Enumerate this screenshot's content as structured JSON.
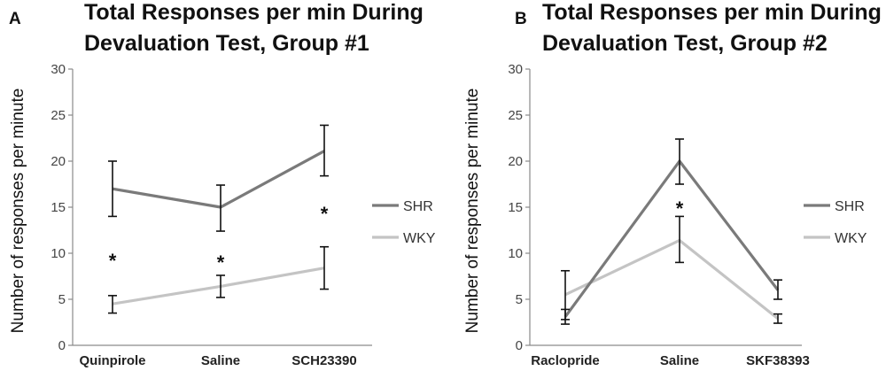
{
  "chart_data": [
    {
      "type": "line",
      "panel_letter": "A",
      "title_lines": [
        "Total Responses per min During",
        "Devaluation Test, Group #1"
      ],
      "ylabel": "Number of responses per minute",
      "xlabel": "",
      "ylim": [
        0,
        30
      ],
      "yticks": [
        "0",
        "5",
        "10",
        "15",
        "20",
        "25",
        "30"
      ],
      "categories": [
        "Quinpirole",
        "Saline",
        "SCH23390"
      ],
      "series": [
        {
          "name": "SHR",
          "color": "#7a7a7a",
          "values": [
            17,
            15,
            21.1
          ],
          "err_low": [
            14,
            12.4,
            18.4
          ],
          "err_high": [
            20,
            17.4,
            23.9
          ]
        },
        {
          "name": "WKY",
          "color": "#c4c4c4",
          "values": [
            4.5,
            6.4,
            8.4
          ],
          "err_low": [
            3.5,
            5.2,
            6.1
          ],
          "err_high": [
            5.4,
            7.6,
            10.7
          ]
        }
      ],
      "annotations": [
        {
          "text": "*",
          "category_index": 0,
          "y": 9.6
        },
        {
          "text": "*",
          "category_index": 1,
          "y": 9.4
        },
        {
          "text": "*",
          "category_index": 2,
          "y": 14.7
        }
      ],
      "legend_placement": "right"
    },
    {
      "type": "line",
      "panel_letter": "B",
      "title_lines": [
        "Total Responses per min During",
        "Devaluation Test, Group #2"
      ],
      "ylabel": "Number of responses per minute",
      "xlabel": "",
      "ylim": [
        0,
        30
      ],
      "yticks": [
        "0",
        "5",
        "10",
        "15",
        "20",
        "25",
        "30"
      ],
      "categories": [
        "Raclopride",
        "Saline",
        "SKF38393"
      ],
      "series": [
        {
          "name": "SHR",
          "color": "#7a7a7a",
          "values": [
            3.1,
            20,
            6
          ],
          "err_low": [
            2.3,
            17.5,
            5
          ],
          "err_high": [
            3.9,
            22.4,
            7.1
          ]
        },
        {
          "name": "WKY",
          "color": "#c4c4c4",
          "values": [
            5.5,
            11.4,
            2.9
          ],
          "err_low": [
            2.8,
            9,
            2.4
          ],
          "err_high": [
            8.1,
            14,
            3.4
          ]
        }
      ],
      "annotations": [
        {
          "text": "*",
          "category_index": 1,
          "y": 15.3
        }
      ],
      "legend_placement": "right"
    }
  ]
}
